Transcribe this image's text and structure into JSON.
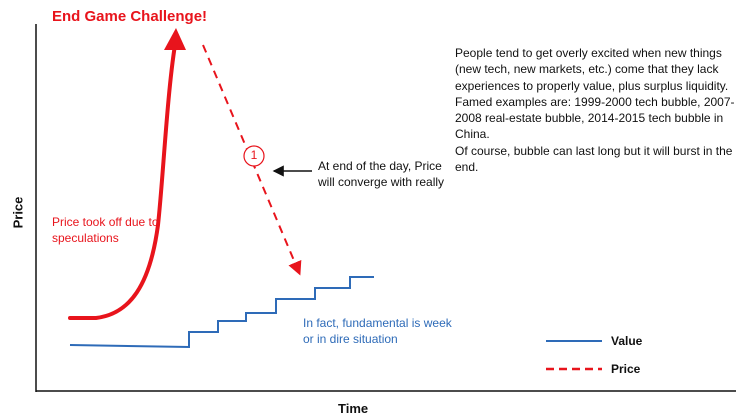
{
  "title": "End Game Challenge!",
  "axis": {
    "x_label": "Time",
    "y_label": "Price"
  },
  "annotations": {
    "price_note": "Price took off due to speculations",
    "converge_note": "At end of the day, Price will converge with really",
    "fundamental_note": "In fact, fundamental is week or in dire situation",
    "step_badge": "1"
  },
  "commentary": [
    "People tend to get overly excited when new things (new tech, new markets, etc.) come that they lack experiences to properly value, plus surplus liquidity.",
    "Famed examples are: 1999-2000 tech bubble, 2007-2008 real-estate bubble, 2014-2015 tech bubble in China.",
    "Of course, bubble can last long but it will burst in the end."
  ],
  "legend": [
    {
      "label": "Value",
      "color": "#2e6bb8",
      "style": "solid"
    },
    {
      "label": "Price",
      "color": "#e8141c",
      "style": "dashed"
    }
  ],
  "colors": {
    "price": "#e8141c",
    "value": "#2e6bb8",
    "axis": "#111111"
  },
  "icons": {
    "arrowhead": "arrowhead-icon",
    "pointer": "left-arrow-icon"
  }
}
